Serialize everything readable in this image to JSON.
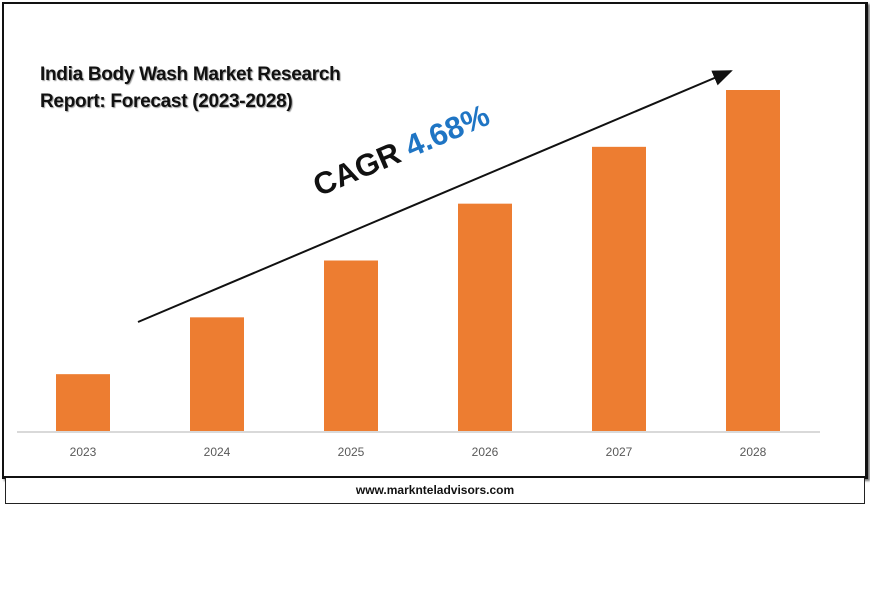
{
  "chart_data": {
    "type": "bar",
    "title": "India Body Wash Market Research Report: Forecast (2023-2028)",
    "title_lines": [
      "India Body Wash Market Research",
      "Report: Forecast (2023-2028)"
    ],
    "categories": [
      "2023",
      "2024",
      "2025",
      "2026",
      "2027",
      "2028"
    ],
    "values": [
      1,
      2,
      3,
      4,
      5,
      6
    ],
    "value_note_visible": false,
    "xlabel": "",
    "ylabel": "",
    "ylim": [
      0,
      6.3
    ],
    "grid": false,
    "bar_color": "#ed7d31",
    "annotation": {
      "label": "CAGR",
      "value": "4.68%",
      "value_color": "#1f75c4"
    }
  },
  "footer": {
    "website": "www.marknteladvisors.com"
  }
}
